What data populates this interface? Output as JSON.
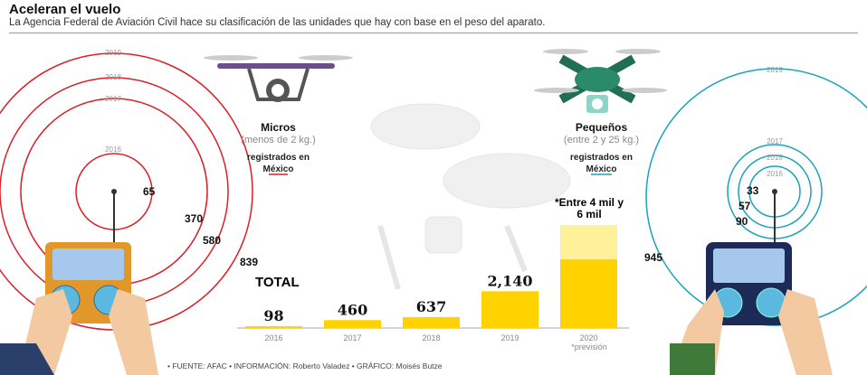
{
  "header": {
    "title": "Aceleran el vuelo",
    "subtitle": "La Agencia Federal de Aviación Civil hace su clasificación de las unidades que hay con base en el peso del aparato."
  },
  "micros": {
    "title": "Micros",
    "subtitle": "(menos de 2 kg.)",
    "note": "registrados en México",
    "color": "#d9202a",
    "rings": [
      {
        "year": "2016",
        "value": "65"
      },
      {
        "year": "2017",
        "value": "370"
      },
      {
        "year": "2018",
        "value": "580"
      },
      {
        "year": "2019",
        "value": "839"
      }
    ]
  },
  "pequenos": {
    "title": "Pequeños",
    "subtitle": "(entre 2 y 25 kg.)",
    "note": "registrados en México",
    "color": "#1aa3b8",
    "rings": [
      {
        "year": "2016",
        "value": "33"
      },
      {
        "year": "2018",
        "value": "57"
      },
      {
        "year": "2017",
        "value": "90"
      },
      {
        "year": "2019",
        "value": "945"
      }
    ]
  },
  "chart_data": {
    "type": "bar",
    "title": "TOTAL",
    "categories": [
      "2016",
      "2017",
      "2018",
      "2019",
      "2020"
    ],
    "values": [
      98,
      460,
      637,
      2140,
      4000
    ],
    "labels": [
      "98",
      "460",
      "637",
      "2,140",
      "*Entre 4 mil y 6 mil"
    ],
    "forecast_range": [
      4000,
      6000
    ],
    "forecast_note": "*previsión",
    "color": "#ffd200",
    "forecast_color": "#fff09a",
    "ylim": [
      0,
      6000
    ]
  },
  "footer": "• FUENTE: AFAC  • INFORMACIÓN: Roberto Valadez  • GRÁFICO: Moisés Butze"
}
